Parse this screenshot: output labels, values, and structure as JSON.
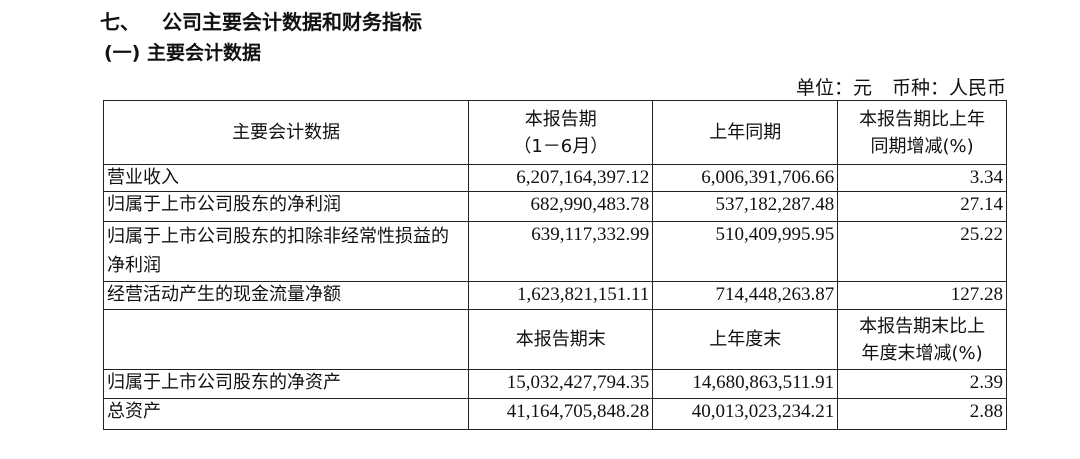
{
  "section_title": {
    "number": "七、",
    "text": "公司主要会计数据和财务指标"
  },
  "subsection_title": "(一) 主要会计数据",
  "unit_line": {
    "unit": "单位：元",
    "currency": "币种：人民币"
  },
  "table": {
    "header1": [
      "主要会计数据",
      "本报告期",
      "（1－6月）",
      "上年同期",
      "本报告期比上年",
      "同期增减(%)"
    ],
    "rows1": [
      {
        "label": "营业收入",
        "current": "6,207,164,397.12",
        "prior": "6,006,391,706.66",
        "change": "3.34"
      },
      {
        "label": "归属于上市公司股东的净利润",
        "current": "682,990,483.78",
        "prior": "537,182,287.48",
        "change": "27.14"
      },
      {
        "label": "归属于上市公司股东的扣除非经常性损益的净利润",
        "current": "639,117,332.99",
        "prior": "510,409,995.95",
        "change": "25.22"
      },
      {
        "label": "经营活动产生的现金流量净额",
        "current": "1,623,821,151.11",
        "prior": "714,448,263.87",
        "change": "127.28"
      }
    ],
    "header2": [
      "",
      "本报告期末",
      "上年度末",
      "本报告期末比上",
      "年度末增减(%)"
    ],
    "rows2": [
      {
        "label": "归属于上市公司股东的净资产",
        "current": "15,032,427,794.35",
        "prior": "14,680,863,511.91",
        "change": "2.39"
      },
      {
        "label": "总资产",
        "current": "41,164,705,848.28",
        "prior": "40,013,023,234.21",
        "change": "2.88"
      }
    ]
  }
}
